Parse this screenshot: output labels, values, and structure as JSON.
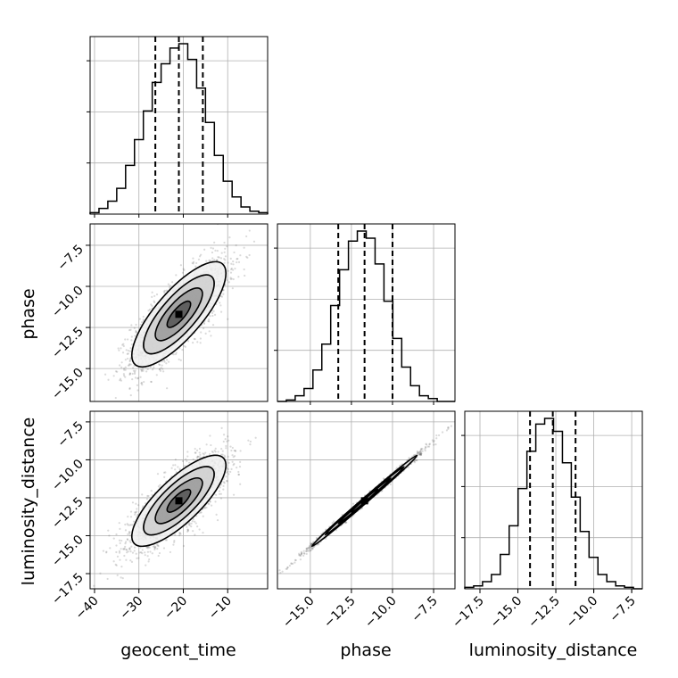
{
  "chart_data": {
    "type": "corner",
    "title": "",
    "parameters": [
      "geocent_time",
      "phase",
      "luminosity_distance"
    ],
    "quantiles": [
      0.16,
      0.5,
      0.84
    ],
    "grid": true,
    "colors": {
      "line": "#000000",
      "grid": "#b0b0b0",
      "scatter": "#555555"
    },
    "ranges": {
      "geocent_time": [
        -41,
        -1
      ],
      "phase": [
        -17,
        -6.2
      ],
      "luminosity_distance": [
        -18.5,
        -6.8
      ]
    },
    "ticks": {
      "geocent_time": [
        -40,
        -30,
        -20,
        -10
      ],
      "phase": [
        -15.0,
        -12.5,
        -10.0,
        -7.5
      ],
      "luminosity_distance": [
        -17.5,
        -15.0,
        -12.5,
        -10.0,
        -7.5
      ]
    },
    "tick_labels": {
      "geocent_time": [
        "−40",
        "−30",
        "−20",
        "−10"
      ],
      "phase": [
        "−15.0",
        "−12.5",
        "−10.0",
        "−7.5"
      ],
      "luminosity_distance": [
        "−17.5",
        "−15.0",
        "−12.5",
        "−10.0",
        "−7.5"
      ]
    },
    "diagonal_histograms": [
      {
        "parameter": "geocent_time",
        "bin_edges": [
          -41,
          -39,
          -37,
          -35,
          -33,
          -31,
          -29,
          -27,
          -25,
          -23,
          -21,
          -19,
          -17,
          -15,
          -13,
          -11,
          -9,
          -7,
          -5,
          -3,
          -1
        ],
        "counts": [
          1,
          4,
          9,
          18,
          34,
          52,
          72,
          92,
          105,
          116,
          119,
          108,
          88,
          64,
          41,
          23,
          12,
          5,
          2,
          1
        ],
        "quantile_values": [
          -26.3,
          -21.0,
          -15.6
        ]
      },
      {
        "parameter": "phase",
        "bin_edges": [
          -17.0,
          -16.46,
          -15.92,
          -15.38,
          -14.84,
          -14.3,
          -13.76,
          -13.22,
          -12.68,
          -12.14,
          -11.6,
          -11.06,
          -10.52,
          -9.98,
          -9.44,
          -8.9,
          -8.36,
          -7.82,
          -7.28,
          -6.74,
          -6.2
        ],
        "counts": [
          0,
          1,
          4,
          9,
          22,
          40,
          67,
          92,
          112,
          119,
          114,
          96,
          70,
          44,
          24,
          11,
          4,
          2,
          0,
          0
        ],
        "quantile_values": [
          -13.3,
          -11.7,
          -10.0
        ]
      },
      {
        "parameter": "luminosity_distance",
        "bin_edges": [
          -18.5,
          -17.915,
          -17.33,
          -16.745,
          -16.16,
          -15.575,
          -14.99,
          -14.405,
          -13.82,
          -13.235,
          -12.65,
          -12.065,
          -11.48,
          -10.895,
          -10.31,
          -9.725,
          -9.14,
          -8.555,
          -7.97,
          -7.385,
          -6.8
        ],
        "counts": [
          1,
          2,
          5,
          10,
          24,
          44,
          70,
          96,
          115,
          119,
          110,
          88,
          64,
          40,
          22,
          10,
          5,
          2,
          1,
          0
        ],
        "quantile_values": [
          -14.2,
          -12.7,
          -11.2
        ]
      }
    ],
    "pair_distributions": [
      {
        "x": "geocent_time",
        "y": "phase",
        "mean": [
          -21.0,
          -11.7
        ],
        "std": [
          5.3,
          1.6
        ],
        "correlation": 0.78,
        "levels_sigma": [
          0.5,
          1.0,
          1.5,
          2.0
        ]
      },
      {
        "x": "geocent_time",
        "y": "luminosity_distance",
        "mean": [
          -21.0,
          -12.7
        ],
        "std": [
          5.3,
          1.5
        ],
        "correlation": 0.78,
        "levels_sigma": [
          0.5,
          1.0,
          1.5,
          2.0
        ]
      },
      {
        "x": "phase",
        "y": "luminosity_distance",
        "mean": [
          -11.7,
          -12.7
        ],
        "std": [
          1.6,
          1.5
        ],
        "correlation": 0.997,
        "levels_sigma": [
          0.5,
          1.0,
          1.5,
          2.0
        ]
      }
    ]
  }
}
